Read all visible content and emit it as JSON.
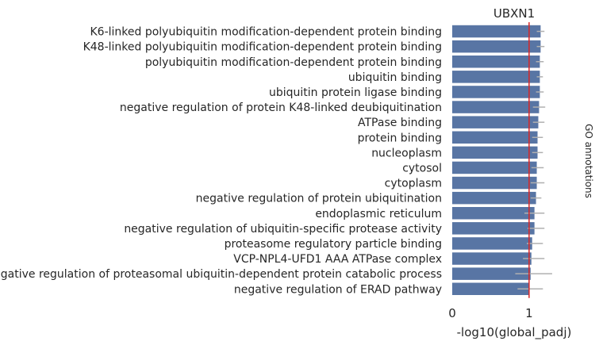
{
  "chart_data": {
    "type": "bar",
    "orientation": "horizontal",
    "title": "UBXN1",
    "xlabel": "-log10(global_padj)",
    "right_label": "GO annotations",
    "xlim": [
      0,
      1.6
    ],
    "x_ticks": [
      "0",
      "1"
    ],
    "x_tick_values": [
      0,
      1
    ],
    "reference_line": 1,
    "bar_color": "#5875a4",
    "ref_line_color": "#d62728",
    "errbar_color": "#b0b0b0",
    "grid": false,
    "categories": [
      "K6-linked polyubiquitin modification-dependent protein binding",
      "K48-linked polyubiquitin modification-dependent protein binding",
      "polyubiquitin modification-dependent protein binding",
      "ubiquitin binding",
      "ubiquitin protein ligase binding",
      "negative regulation of protein K48-linked deubiquitination",
      "ATPase binding",
      "protein binding",
      "nucleoplasm",
      "cytosol",
      "cytoplasm",
      "negative regulation of protein ubiquitination",
      "endoplasmic reticulum",
      "negative regulation of ubiquitin-specific protease activity",
      "proteasome regulatory particle binding",
      "VCP-NPL4-UFD1 AAA ATPase complex",
      "negative regulation of proteasomal ubiquitin-dependent protein catabolic process",
      "negative regulation of ERAD pathway"
    ],
    "values": [
      1.15,
      1.15,
      1.14,
      1.14,
      1.14,
      1.13,
      1.12,
      1.11,
      1.11,
      1.1,
      1.1,
      1.09,
      1.07,
      1.07,
      1.04,
      1.03,
      1.02,
      1.0
    ],
    "err_low": [
      1.1,
      1.1,
      1.09,
      1.1,
      1.09,
      1.05,
      1.05,
      1.04,
      1.04,
      1.03,
      1.02,
      1.02,
      0.94,
      0.98,
      0.97,
      0.92,
      0.82,
      0.85
    ],
    "err_high": [
      1.2,
      1.2,
      1.19,
      1.18,
      1.19,
      1.21,
      1.2,
      1.18,
      1.18,
      1.19,
      1.2,
      1.16,
      1.2,
      1.2,
      1.18,
      1.2,
      1.3,
      1.18
    ]
  }
}
